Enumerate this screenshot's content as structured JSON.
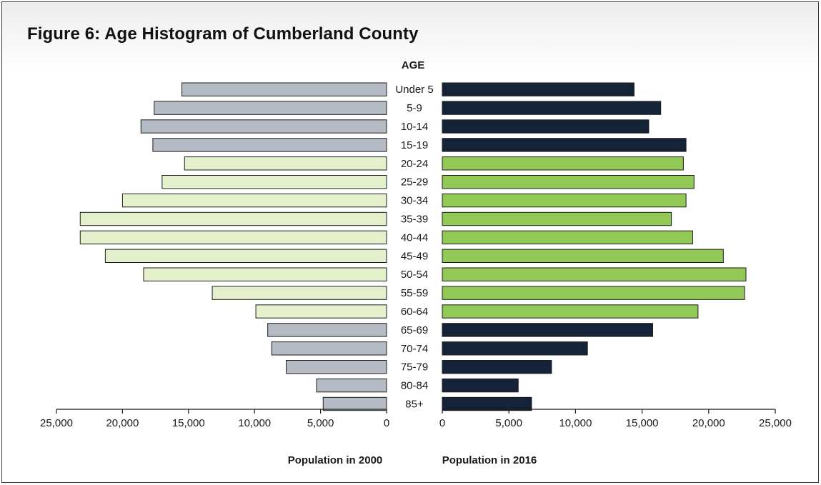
{
  "chart_data": {
    "type": "bar",
    "orientation": "horizontal",
    "layout": "back-to-back",
    "title": "Figure 6: Age Histogram of Cumberland County",
    "category_header": "AGE",
    "categories": [
      "Under 5",
      "5-9",
      "10-14",
      "15-19",
      "20-24",
      "25-29",
      "30-34",
      "35-39",
      "40-44",
      "45-49",
      "50-54",
      "55-59",
      "60-64",
      "65-69",
      "70-74",
      "75-79",
      "80-84",
      "85+"
    ],
    "series": [
      {
        "name": "Population in 2000",
        "side": "left",
        "values": [
          15500,
          17600,
          18600,
          17700,
          15300,
          17000,
          20000,
          23200,
          23200,
          21300,
          18400,
          13200,
          9900,
          9000,
          8700,
          7600,
          5300,
          4800
        ]
      },
      {
        "name": "Population in 2016",
        "side": "right",
        "values": [
          14400,
          16400,
          15500,
          18300,
          18100,
          18900,
          18300,
          17200,
          18800,
          21100,
          22800,
          22700,
          19200,
          15800,
          10900,
          8200,
          5700,
          6700
        ]
      }
    ],
    "working_age_groups": [
      "20-24",
      "25-29",
      "30-34",
      "35-39",
      "40-44",
      "45-49",
      "50-54",
      "55-59",
      "60-64"
    ],
    "colors": {
      "left_default": "#b4bbc4",
      "left_working": "#e3f0cb",
      "right_default": "#152338",
      "right_working": "#92c956",
      "bar_stroke": "#1c1c1c"
    },
    "xlim": [
      0,
      25000
    ],
    "xticks": [
      0,
      5000,
      10000,
      15000,
      20000,
      25000
    ],
    "xtick_labels": [
      "0",
      "5,000",
      "10,000",
      "15,000",
      "20,000",
      "25,000"
    ],
    "grid": false,
    "legend": "none"
  }
}
